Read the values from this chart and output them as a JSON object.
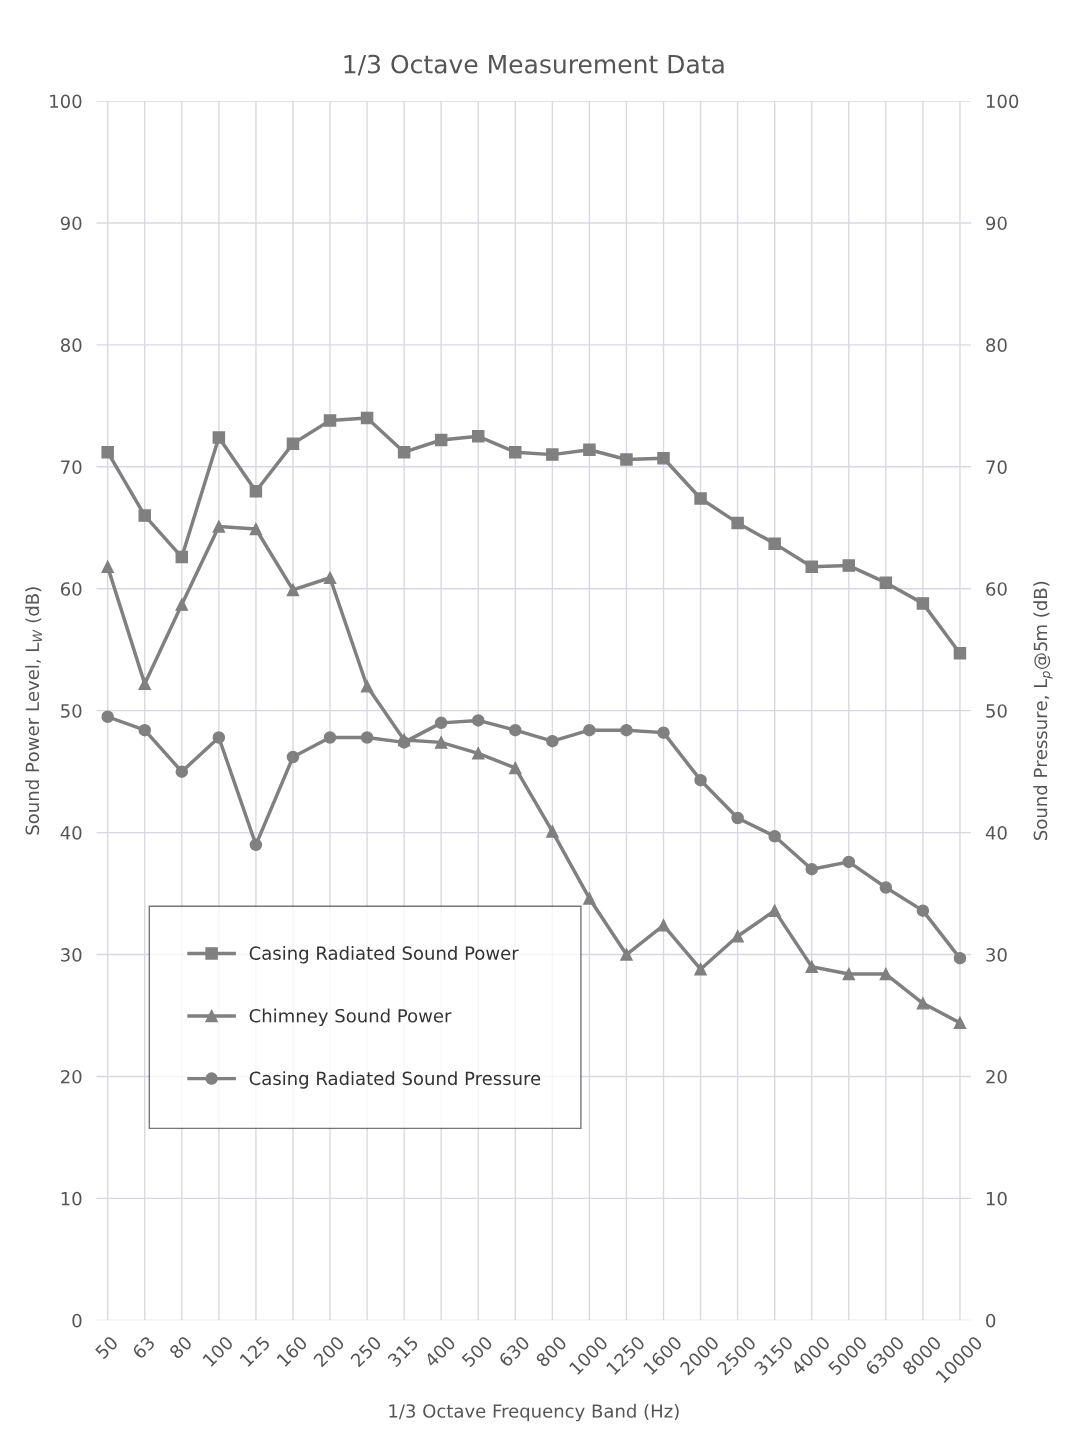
{
  "chart_data": {
    "type": "line",
    "title": "1/3 Octave Measurement Data",
    "xlabel": "1/3 Octave Frequency Band (Hz)",
    "ylabel": "Sound Power Level, L$_{W}$ (dB)",
    "y2label": "Sound Pressure, L$_{p}$@5m (dB)",
    "categories": [
      "50",
      "63",
      "80",
      "100",
      "125",
      "160",
      "200",
      "250",
      "315",
      "400",
      "500",
      "630",
      "800",
      "1000",
      "1250",
      "1600",
      "2000",
      "2500",
      "3150",
      "4000",
      "5000",
      "6300",
      "8000",
      "10000"
    ],
    "series": [
      {
        "name": "Casing Radiated Sound Power",
        "color": "#808080",
        "marker": "square",
        "values": [
          71.2,
          66.0,
          62.6,
          72.4,
          68.0,
          71.9,
          73.8,
          74.0,
          71.2,
          72.2,
          72.5,
          71.2,
          71.0,
          71.4,
          70.6,
          70.7,
          67.4,
          65.4,
          63.7,
          61.8,
          61.9,
          60.5,
          58.8,
          54.7
        ]
      },
      {
        "name": "Chimney Sound Power",
        "color": "#808080",
        "marker": "triangle",
        "values": [
          61.8,
          52.2,
          58.7,
          65.1,
          64.9,
          59.9,
          60.9,
          52.0,
          47.6,
          47.4,
          46.5,
          45.3,
          40.1,
          34.6,
          30.0,
          32.4,
          28.8,
          31.5,
          33.6,
          29.0,
          28.4,
          28.4,
          26.0,
          24.4
        ]
      },
      {
        "name": "Casing Radiated Sound Pressure",
        "color": "#808080",
        "marker": "circle",
        "values": [
          49.5,
          48.4,
          45.0,
          47.8,
          39.0,
          46.2,
          47.8,
          47.8,
          47.4,
          49.0,
          49.2,
          48.4,
          47.5,
          48.4,
          48.4,
          48.2,
          44.3,
          41.2,
          39.7,
          37.0,
          37.6,
          35.5,
          33.6,
          29.7
        ]
      }
    ],
    "ylim": [
      0,
      100
    ],
    "yticks": [
      0,
      10,
      20,
      30,
      40,
      50,
      60,
      70,
      80,
      90,
      100
    ],
    "y2lim": [
      0,
      100
    ],
    "y2ticks": [
      0,
      10,
      20,
      30,
      40,
      50,
      60,
      70,
      80,
      90,
      100
    ],
    "grid": true,
    "legend": "bottom left",
    "line_style": "solid"
  }
}
